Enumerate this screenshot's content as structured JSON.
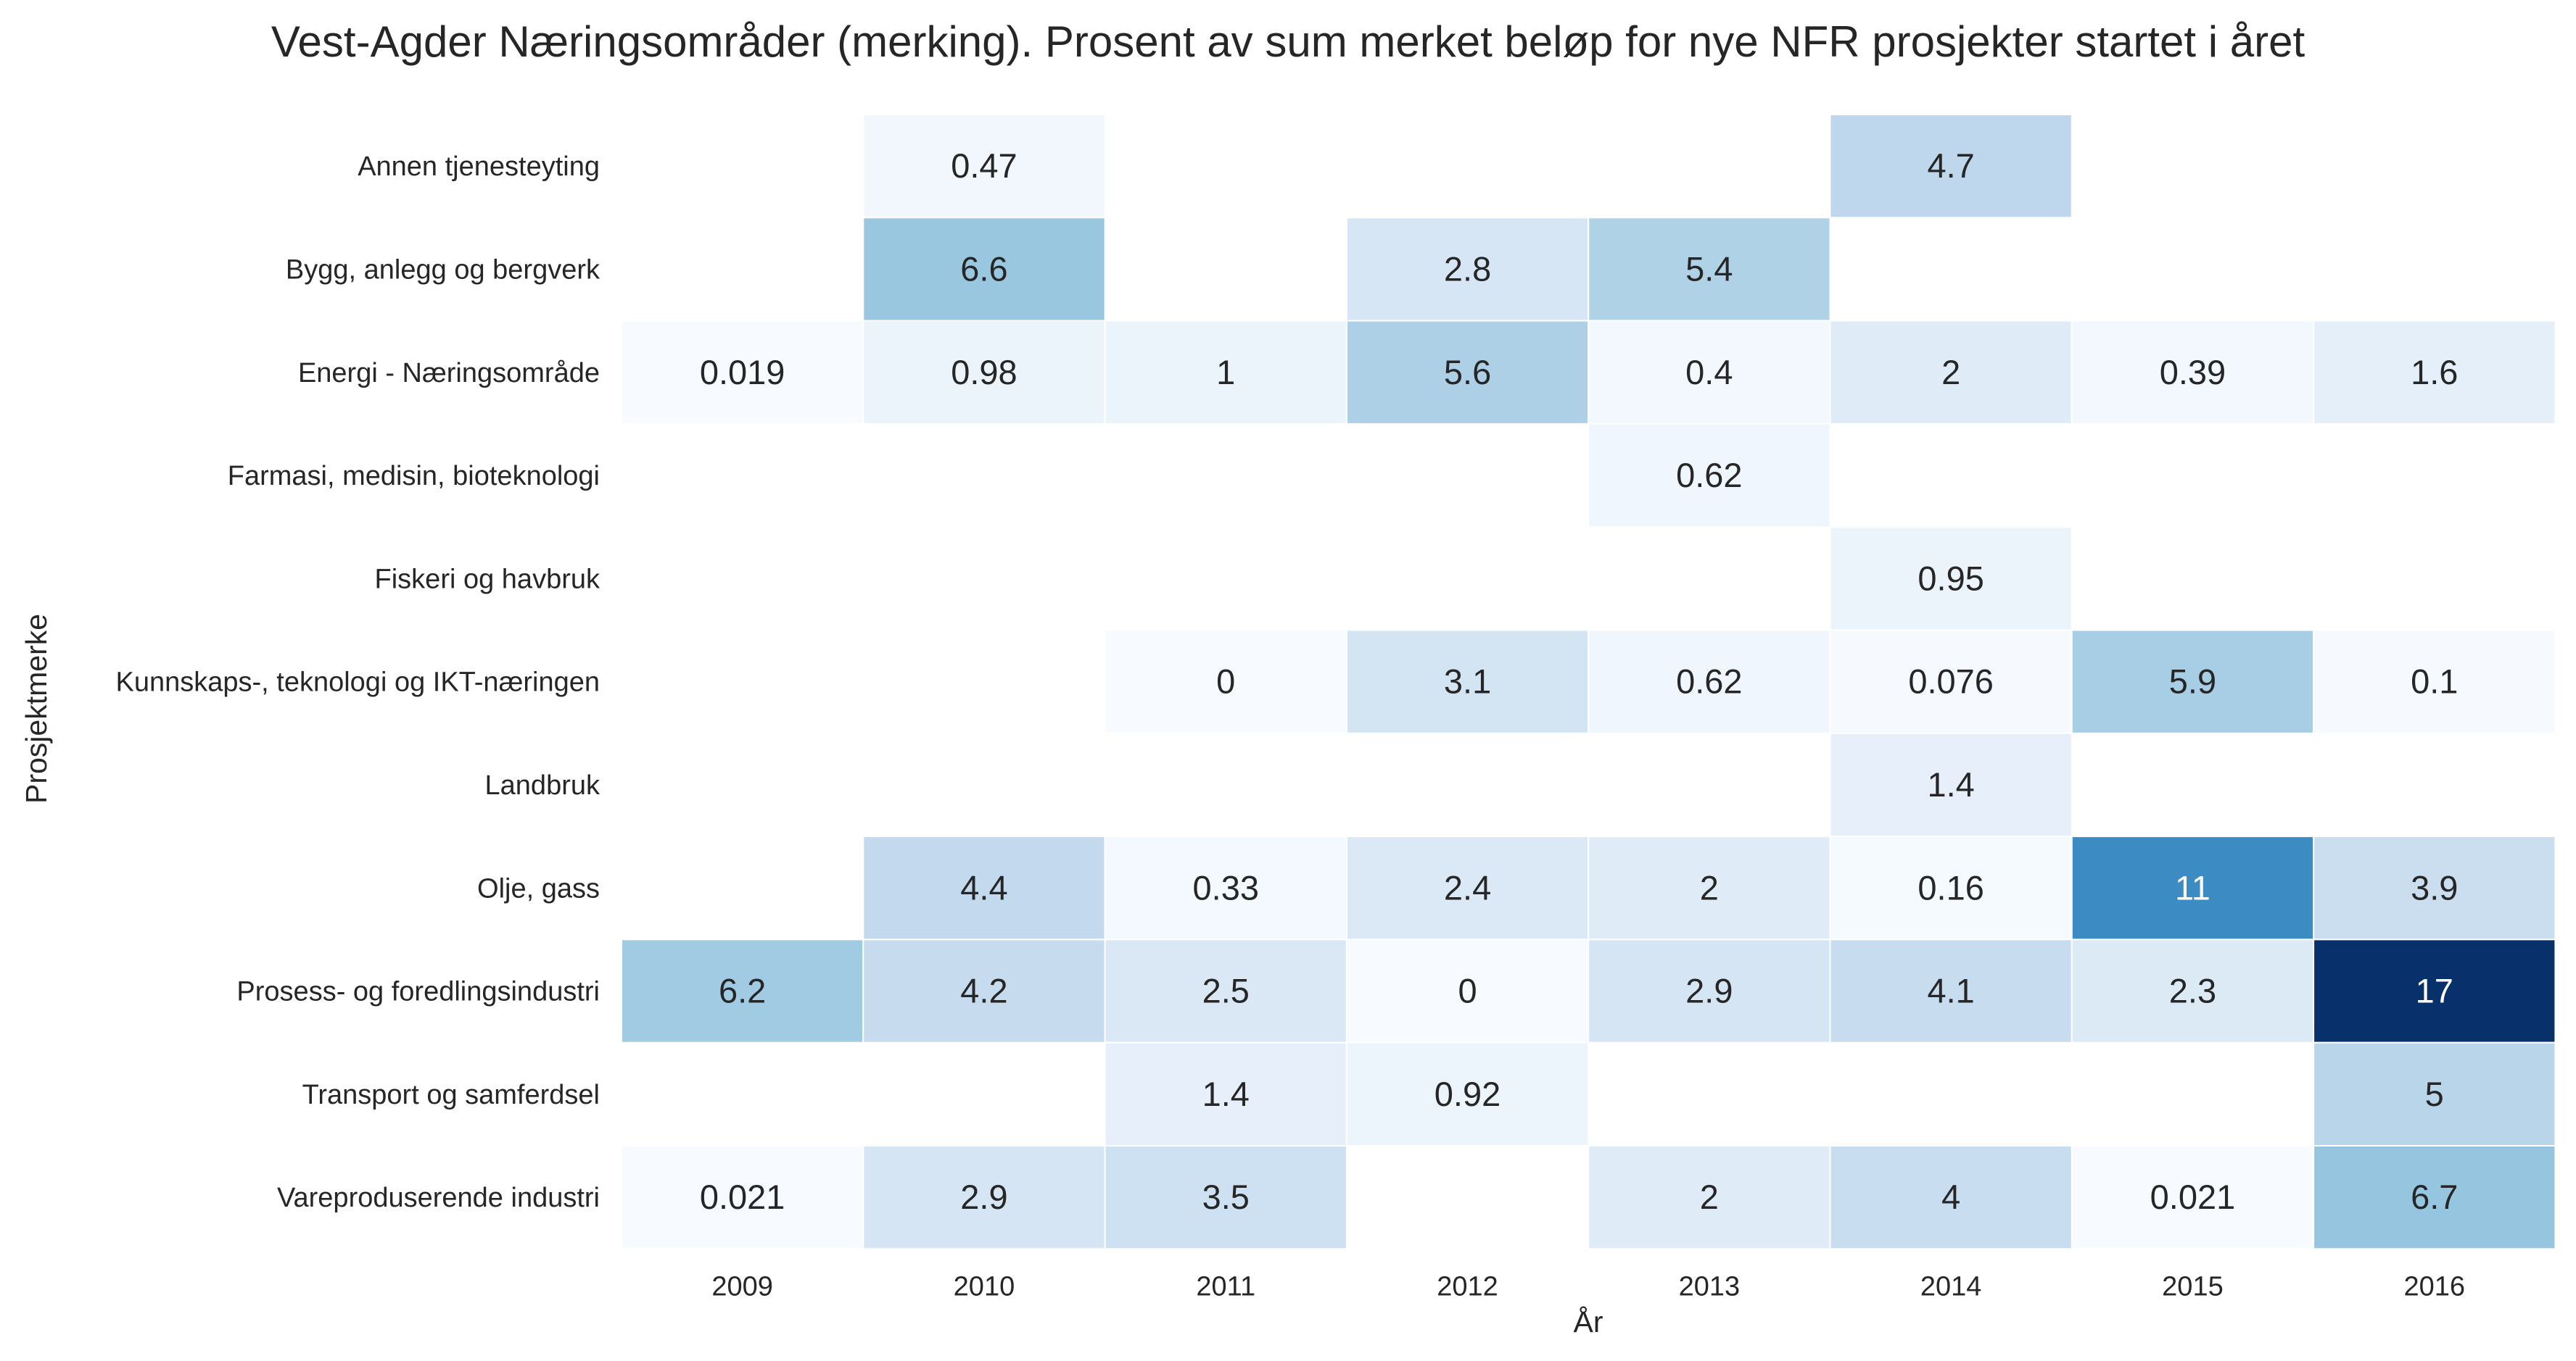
{
  "chart_data": {
    "type": "heatmap",
    "title": "Vest-Agder Næringsområder (merking). Prosent av sum merket beløp for nye NFR prosjekter startet i året",
    "xlabel": "År",
    "ylabel": "Prosjektmerke",
    "x": [
      "2009",
      "2010",
      "2011",
      "2012",
      "2013",
      "2014",
      "2015",
      "2016"
    ],
    "y": [
      "Annen tjenesteyting",
      "Bygg, anlegg og bergverk",
      "Energi - Næringsområde",
      "Farmasi, medisin, bioteknologi",
      "Fiskeri og havbruk",
      "Kunnskaps-, teknologi og IKT-næringen",
      "Landbruk",
      "Olje, gass",
      "Prosess- og foredlingsindustri",
      "Transport og samferdsel",
      "Vareproduserende industri"
    ],
    "values": [
      [
        null,
        0.47,
        null,
        null,
        null,
        4.7,
        null,
        null
      ],
      [
        null,
        6.6,
        null,
        2.8,
        5.4,
        null,
        null,
        null
      ],
      [
        0.019,
        0.98,
        1,
        5.6,
        0.4,
        2,
        0.39,
        1.6
      ],
      [
        null,
        null,
        null,
        null,
        0.62,
        null,
        null,
        null
      ],
      [
        null,
        null,
        null,
        null,
        null,
        0.95,
        null,
        null
      ],
      [
        null,
        null,
        0,
        3.1,
        0.62,
        0.076,
        5.9,
        0.1
      ],
      [
        null,
        null,
        null,
        null,
        null,
        1.4,
        null,
        null
      ],
      [
        null,
        4.4,
        0.33,
        2.4,
        2,
        0.16,
        11,
        3.9
      ],
      [
        6.2,
        4.2,
        2.5,
        0,
        2.9,
        4.1,
        2.3,
        17
      ],
      [
        null,
        null,
        1.4,
        0.92,
        null,
        null,
        null,
        5
      ],
      [
        0.021,
        2.9,
        3.5,
        null,
        2,
        4,
        0.021,
        6.7
      ]
    ],
    "labels": [
      [
        null,
        "0.47",
        null,
        null,
        null,
        "4.7",
        null,
        null
      ],
      [
        null,
        "6.6",
        null,
        "2.8",
        "5.4",
        null,
        null,
        null
      ],
      [
        "0.019",
        "0.98",
        "1",
        "5.6",
        "0.4",
        "2",
        "0.39",
        "1.6"
      ],
      [
        null,
        null,
        null,
        null,
        "0.62",
        null,
        null,
        null
      ],
      [
        null,
        null,
        null,
        null,
        null,
        "0.95",
        null,
        null
      ],
      [
        null,
        null,
        "0",
        "3.1",
        "0.62",
        "0.076",
        "5.9",
        "0.1"
      ],
      [
        null,
        null,
        null,
        null,
        null,
        "1.4",
        null,
        null
      ],
      [
        null,
        "4.4",
        "0.33",
        "2.4",
        "2",
        "0.16",
        "11",
        "3.9"
      ],
      [
        "6.2",
        "4.2",
        "2.5",
        "0",
        "2.9",
        "4.1",
        "2.3",
        "17"
      ],
      [
        null,
        null,
        "1.4",
        "0.92",
        null,
        null,
        null,
        "5"
      ],
      [
        "0.021",
        "2.9",
        "3.5",
        null,
        "2",
        "4",
        "0.021",
        "6.7"
      ]
    ],
    "colormap": "Blues",
    "color_range": [
      0,
      17
    ],
    "colorbar": false,
    "grid": false,
    "gridline_color": "#ffffff"
  }
}
